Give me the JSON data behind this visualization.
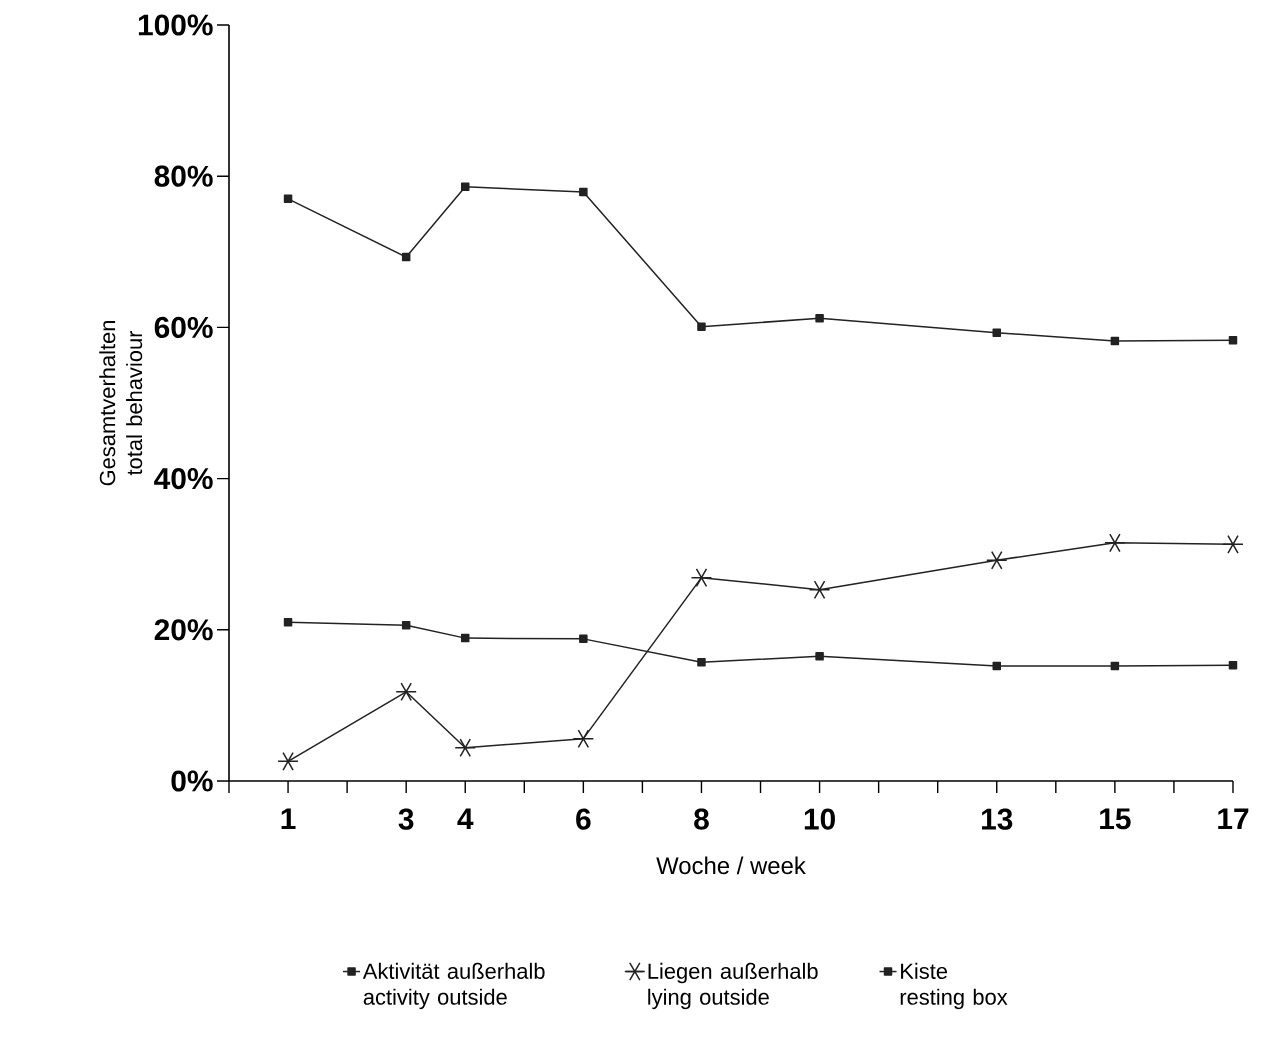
{
  "chart_data": {
    "type": "line",
    "xlabel": "Woche / week",
    "ylabel": "Gesamtverhalten total behaviour",
    "xlim": [
      0,
      17
    ],
    "xticks": [
      {
        "value": 0,
        "label": null
      },
      1,
      {
        "value": 2,
        "label": null
      },
      3,
      4,
      {
        "value": 5,
        "label": null
      },
      6,
      {
        "value": 7,
        "label": null
      },
      8,
      {
        "value": 9,
        "label": null
      },
      10,
      {
        "value": 11,
        "label": null
      },
      {
        "value": 12,
        "label": null
      },
      13,
      {
        "value": 14,
        "label": null
      },
      15,
      {
        "value": 16,
        "label": null
      },
      17
    ],
    "ylim": [
      0,
      100
    ],
    "yticks": [
      {
        "value": 0,
        "label": "0%"
      },
      {
        "value": 20,
        "label": "20%"
      },
      {
        "value": 40,
        "label": "40%"
      },
      {
        "value": 60,
        "label": "60%"
      },
      {
        "value": 80,
        "label": "80%"
      },
      {
        "value": 100,
        "label": "100%"
      }
    ],
    "x": [
      1,
      3,
      4,
      6,
      8,
      10,
      13,
      15,
      17
    ],
    "grid": false,
    "legend": "bottom",
    "series": [
      {
        "name": "Aktivität außerhalb activity outside",
        "color": "#222222",
        "marker": "square",
        "values": [
          21.0,
          20.6,
          18.9,
          18.8,
          15.7,
          16.5,
          15.2,
          15.2,
          15.3
        ]
      },
      {
        "name": "Liegen außerhalb lying outside",
        "color": "#222222",
        "marker": "cross",
        "values": [
          2.6,
          11.8,
          4.4,
          5.6,
          26.9,
          25.3,
          29.2,
          31.5,
          31.3
        ]
      },
      {
        "name": "Kiste resting box",
        "color": "#222222",
        "marker": "square",
        "values": [
          77.0,
          69.3,
          78.6,
          77.9,
          60.1,
          61.2,
          59.3,
          58.2,
          58.3
        ]
      }
    ]
  }
}
